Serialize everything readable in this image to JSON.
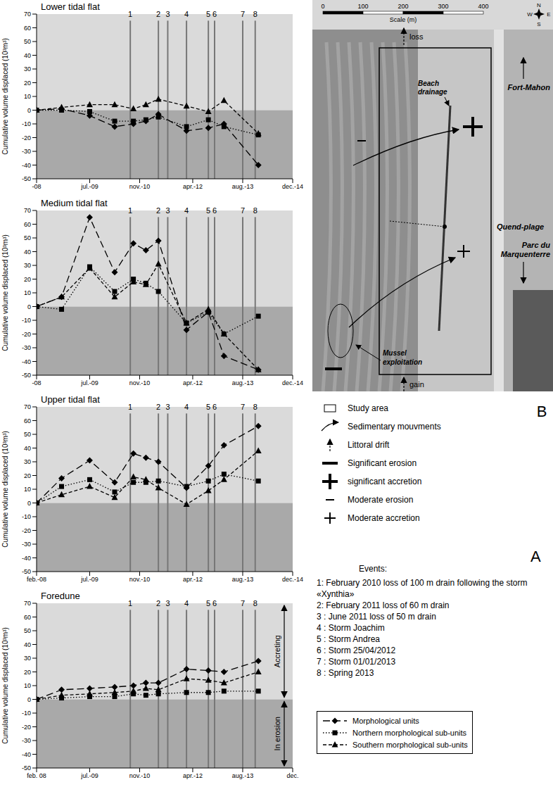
{
  "chart_data": [
    {
      "type": "line",
      "title": "Lower tidal flat",
      "y_label": "Cumulative volume displaced  (10³m³)",
      "x": [
        "2008-02",
        "2008-10",
        "2009-07",
        "2010-03",
        "2010-09",
        "2011-01",
        "2011-05",
        "2012-02",
        "2012-09",
        "2013-02",
        "2014-01"
      ],
      "series": [
        {
          "name": "Morphological units",
          "color": "#000000",
          "marker": "diamond",
          "line_style": "long-dash",
          "values": [
            0,
            1,
            -4,
            -12,
            -10,
            -8,
            -3,
            -15,
            -13,
            -10,
            -40
          ]
        },
        {
          "name": "Northern morphological sub-units",
          "color": "#000000",
          "marker": "square",
          "line_style": "dotted",
          "values": [
            0,
            0,
            -1,
            -8,
            -8,
            -7,
            -5,
            -12,
            -7,
            -12,
            -18
          ]
        },
        {
          "name": "Southern morphological sub-units",
          "color": "#000000",
          "marker": "triangle",
          "line_style": "dashed",
          "values": [
            0,
            2,
            4,
            4,
            1,
            4,
            8,
            3,
            -1,
            7,
            -17
          ]
        }
      ],
      "xlim": [
        "2008-02",
        "2014-12"
      ],
      "xticks": [
        {
          "value": "2008-02",
          "label": "-08"
        },
        {
          "value": "2009-07",
          "label": "jul.-09"
        },
        {
          "value": "2010-11",
          "label": "nov.-10"
        },
        {
          "value": "2012-04",
          "label": "apr.-12"
        },
        {
          "value": "2013-08",
          "label": "aug.-13"
        },
        {
          "value": "2014-12",
          "label": "dec.-14"
        }
      ],
      "ylim": [
        -50,
        70
      ],
      "yticks": [
        -50,
        -40,
        -30,
        -20,
        -10,
        0,
        10,
        20,
        30,
        40,
        50,
        60,
        70
      ],
      "grid": false,
      "events": [
        {
          "label": "1",
          "x": "2010-08"
        },
        {
          "label": "2",
          "x": "2011-05"
        },
        {
          "label": "3",
          "x": "2011-08"
        },
        {
          "label": "4",
          "x": "2012-02"
        },
        {
          "label": "5",
          "x": "2012-09"
        },
        {
          "label": "6",
          "x": "2012-11"
        },
        {
          "label": "7",
          "x": "2013-08"
        },
        {
          "label": "8",
          "x": "2013-12"
        }
      ]
    },
    {
      "type": "line",
      "title": "Medium tidal flat",
      "y_label": "Cumulative volume displaced  (10³m³)",
      "x": [
        "2008-02",
        "2008-10",
        "2009-07",
        "2010-03",
        "2010-09",
        "2011-01",
        "2011-05",
        "2012-02",
        "2012-09",
        "2013-02",
        "2014-01"
      ],
      "series": [
        {
          "name": "Morphological units",
          "color": "#000000",
          "marker": "diamond",
          "line_style": "long-dash",
          "values": [
            0,
            7,
            65,
            25,
            46,
            41,
            48,
            -17,
            -4,
            -36,
            -46
          ]
        },
        {
          "name": "Northern morphological sub-units",
          "color": "#000000",
          "marker": "square",
          "line_style": "dotted",
          "values": [
            0,
            -2,
            29,
            11,
            20,
            17,
            11,
            -12,
            -4,
            -20,
            -7
          ]
        },
        {
          "name": "Southern morphological sub-units",
          "color": "#000000",
          "marker": "triangle",
          "line_style": "dashed",
          "values": [
            0,
            7,
            28,
            7,
            18,
            16,
            31,
            -12,
            -2,
            -20,
            -46
          ]
        }
      ],
      "xlim": [
        "2008-02",
        "2014-12"
      ],
      "xticks": [
        {
          "value": "2008-02",
          "label": "-08"
        },
        {
          "value": "2009-07",
          "label": "jul.-09"
        },
        {
          "value": "2010-11",
          "label": "nov.-10"
        },
        {
          "value": "2012-04",
          "label": "apr.-12"
        },
        {
          "value": "2013-08",
          "label": "aug.-13"
        },
        {
          "value": "2014-12",
          "label": "dec.-14"
        }
      ],
      "ylim": [
        -50,
        70
      ],
      "yticks": [
        -50,
        -40,
        -30,
        -20,
        -10,
        0,
        10,
        20,
        30,
        40,
        50,
        60,
        70
      ],
      "grid": false,
      "events": [
        {
          "label": "1",
          "x": "2010-08"
        },
        {
          "label": "2",
          "x": "2011-05"
        },
        {
          "label": "3",
          "x": "2011-08"
        },
        {
          "label": "4",
          "x": "2012-02"
        },
        {
          "label": "5",
          "x": "2012-09"
        },
        {
          "label": "6",
          "x": "2012-11"
        },
        {
          "label": "7",
          "x": "2013-08"
        },
        {
          "label": "8",
          "x": "2013-12"
        }
      ]
    },
    {
      "type": "line",
      "title": "Upper tidal flat",
      "y_label": "Cumulative volume displaced  (10³m³)",
      "x": [
        "2008-02",
        "2008-10",
        "2009-07",
        "2010-03",
        "2010-09",
        "2011-01",
        "2011-05",
        "2012-02",
        "2012-09",
        "2013-02",
        "2014-01"
      ],
      "series": [
        {
          "name": "Morphological units",
          "color": "#000000",
          "marker": "diamond",
          "line_style": "long-dash",
          "values": [
            0,
            18,
            31,
            15,
            36,
            33,
            30,
            11,
            27,
            42,
            56
          ]
        },
        {
          "name": "Northern morphological sub-units",
          "color": "#000000",
          "marker": "square",
          "line_style": "dotted",
          "values": [
            0,
            12,
            17,
            8,
            15,
            15,
            16,
            12,
            16,
            21,
            16
          ]
        },
        {
          "name": "Southern morphological sub-units",
          "color": "#000000",
          "marker": "triangle",
          "line_style": "dashed",
          "values": [
            0,
            6,
            12,
            4,
            19,
            17,
            11,
            -1,
            9,
            17,
            38
          ]
        }
      ],
      "xlim": [
        "2008-02",
        "2014-12"
      ],
      "xticks": [
        {
          "value": "2008-02",
          "label": "feb.-08"
        },
        {
          "value": "2009-07",
          "label": "jul.-09"
        },
        {
          "value": "2010-11",
          "label": "nov.-10"
        },
        {
          "value": "2012-04",
          "label": "apr.-12"
        },
        {
          "value": "2013-08",
          "label": "aug.-13"
        },
        {
          "value": "2014-12",
          "label": "dec.-14"
        }
      ],
      "ylim": [
        -50,
        70
      ],
      "yticks": [
        -50,
        -40,
        -30,
        -20,
        -10,
        0,
        10,
        20,
        30,
        40,
        50,
        60,
        70
      ],
      "grid": false,
      "events": [
        {
          "label": "1",
          "x": "2010-08"
        },
        {
          "label": "2",
          "x": "2011-05"
        },
        {
          "label": "3",
          "x": "2011-08"
        },
        {
          "label": "4",
          "x": "2012-02"
        },
        {
          "label": "5",
          "x": "2012-09"
        },
        {
          "label": "6",
          "x": "2012-11"
        },
        {
          "label": "7",
          "x": "2013-08"
        },
        {
          "label": "8",
          "x": "2013-12"
        }
      ]
    },
    {
      "type": "line",
      "title": "Foredune",
      "y_label": "Cumulative volume displaced  (10³m³)",
      "x": [
        "2008-02",
        "2008-10",
        "2009-07",
        "2010-03",
        "2010-09",
        "2011-01",
        "2011-05",
        "2012-02",
        "2012-09",
        "2013-02",
        "2014-01"
      ],
      "series": [
        {
          "name": "Morphological units",
          "color": "#000000",
          "marker": "diamond",
          "line_style": "long-dash",
          "values": [
            0,
            7,
            8,
            9,
            10,
            12,
            12,
            22,
            21,
            20,
            28
          ]
        },
        {
          "name": "Northern morphological sub-units",
          "color": "#000000",
          "marker": "square",
          "line_style": "dotted",
          "values": [
            0,
            1,
            2,
            2,
            4,
            3,
            4,
            5,
            5,
            6,
            6
          ]
        },
        {
          "name": "Southern morphological sub-units",
          "color": "#000000",
          "marker": "triangle",
          "line_style": "dashed",
          "values": [
            0,
            3,
            4,
            5,
            6,
            8,
            7,
            15,
            14,
            12,
            20
          ]
        }
      ],
      "xlim": [
        "2008-02",
        "2014-12"
      ],
      "xticks": [
        {
          "value": "2008-02",
          "label": "feb. 08"
        },
        {
          "value": "2009-07",
          "label": "jul.-09"
        },
        {
          "value": "2010-11",
          "label": "nov.-10"
        },
        {
          "value": "2012-04",
          "label": "apr.-12"
        },
        {
          "value": "2013-08",
          "label": "aug.-13"
        },
        {
          "value": "2014-12",
          "label": "dec."
        }
      ],
      "ylim": [
        -50,
        70
      ],
      "yticks": [
        -50,
        -40,
        -30,
        -20,
        -10,
        0,
        10,
        20,
        30,
        40,
        50,
        60,
        70
      ],
      "grid": false,
      "legend": "right",
      "annotations": [
        "Accreting",
        "In erosion"
      ],
      "events": [
        {
          "label": "1",
          "x": "2010-08"
        },
        {
          "label": "2",
          "x": "2011-05"
        },
        {
          "label": "3",
          "x": "2011-08"
        },
        {
          "label": "4",
          "x": "2012-02"
        },
        {
          "label": "5",
          "x": "2012-09"
        },
        {
          "label": "6",
          "x": "2012-11"
        },
        {
          "label": "7",
          "x": "2013-08"
        },
        {
          "label": "8",
          "x": "2013-12"
        }
      ]
    }
  ],
  "map": {
    "panel_label": "B",
    "scale": {
      "ticks": [
        0,
        100,
        200,
        300,
        400
      ],
      "label": "Scale (m)"
    },
    "compass": [
      "N",
      "W",
      "E",
      "S"
    ],
    "labels": {
      "loss": "loss",
      "gain": "gain",
      "beach_drainage": "Beach drainage",
      "mussel": "Mussel exploitation",
      "fort": "Fort-Mahon",
      "quend": "Quend-plage",
      "parc": "Parc du Marquenterre"
    },
    "key_items": [
      "Study area",
      "Sedimentary mouvments",
      "Littoral drift",
      "Significant erosion",
      "significant accretion",
      "Moderate erosion",
      "Moderate accretion"
    ]
  },
  "events_panel": {
    "panel_label": "A",
    "title": "Events:",
    "items": [
      "1: February 2010 loss of 100 m drain following the storm «Xynthia»",
      "2: February 2011 loss of 60 m drain",
      "3 : June 2011 loss of 50 m drain",
      "4 : Storm Joachim",
      "5 : Storm Andrea",
      "6 : Storm 25/04/2012",
      "7 : Storm  01/01/2013",
      "8 : Spring 2013"
    ]
  }
}
